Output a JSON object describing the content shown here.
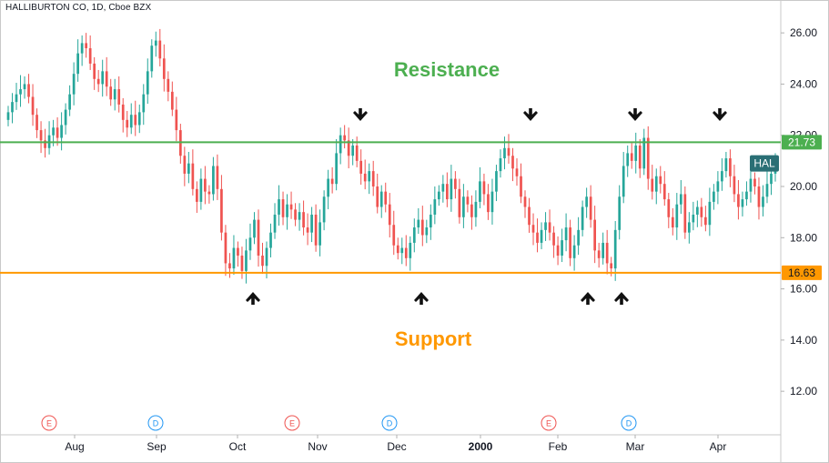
{
  "header": {
    "symbol_title": "HALLIBURTON CO, 1D, Cboe BZX"
  },
  "chart_data": {
    "type": "candlestick",
    "title": "HALLIBURTON CO, 1D, Cboe BZX",
    "ylim": [
      10.3,
      27.0
    ],
    "yticks": [
      12.0,
      14.0,
      16.0,
      18.0,
      20.0,
      22.0,
      24.0,
      26.0
    ],
    "yticks_labels": [
      "12.00",
      "14.00",
      "16.00",
      "18.00",
      "20.00",
      "22.00",
      "24.00",
      "26.00"
    ],
    "x_months": [
      "Aug",
      "Sep",
      "Oct",
      "Nov",
      "Dec",
      "2000",
      "Feb",
      "Mar",
      "Apr"
    ],
    "grid": false,
    "resistance": {
      "label": "Resistance",
      "value": 21.73,
      "value_label": "21.73",
      "color": "#4caf50"
    },
    "support": {
      "label": "Support",
      "value": 16.63,
      "value_label": "16.63",
      "color": "#ff9800"
    },
    "last_price": {
      "symbol": "HAL",
      "value": 20.9,
      "color": "#2a6f75"
    },
    "up_color": "#26a69a",
    "down_color": "#ef5350",
    "markers": {
      "down_arrows": [
        "Nov",
        "Jan",
        "Mar",
        "Apr"
      ],
      "up_arrows": [
        "Oct",
        "Dec",
        "Feb",
        "Feb",
        "Feb"
      ]
    },
    "events": [
      {
        "letter": "E",
        "month": "Aug",
        "color": "#ef5350"
      },
      {
        "letter": "D",
        "month": "Sep",
        "color": "#2196f3"
      },
      {
        "letter": "E",
        "month": "Nov",
        "color": "#ef5350"
      },
      {
        "letter": "D",
        "month": "Dec",
        "color": "#2196f3"
      },
      {
        "letter": "E",
        "month": "Feb",
        "color": "#ef5350"
      },
      {
        "letter": "D",
        "month": "Mar",
        "color": "#2196f3"
      }
    ],
    "closes": [
      22.9,
      23.3,
      23.6,
      23.8,
      24.0,
      23.5,
      22.8,
      22.2,
      21.8,
      21.5,
      22.0,
      22.3,
      21.9,
      22.4,
      23.0,
      23.6,
      24.4,
      25.2,
      25.6,
      25.4,
      24.8,
      24.2,
      24.0,
      24.5,
      23.9,
      23.4,
      23.8,
      23.2,
      22.6,
      22.3,
      22.8,
      22.4,
      22.9,
      23.6,
      24.5,
      25.5,
      25.7,
      25.0,
      24.2,
      23.7,
      23.0,
      22.2,
      21.2,
      20.5,
      20.9,
      19.9,
      19.4,
      20.3,
      19.8,
      19.7,
      20.8,
      19.9,
      18.2,
      17.0,
      16.8,
      17.6,
      17.3,
      16.7,
      17.5,
      18.0,
      18.7,
      17.3,
      16.9,
      17.6,
      18.2,
      18.9,
      19.5,
      18.8,
      19.3,
      19.1,
      18.7,
      19.0,
      18.4,
      18.2,
      18.9,
      17.7,
      18.6,
      19.6,
      20.3,
      20.1,
      21.3,
      22.0,
      21.8,
      21.2,
      21.6,
      21.0,
      20.5,
      20.2,
      20.6,
      20.0,
      19.2,
      19.8,
      19.3,
      18.5,
      17.7,
      17.4,
      17.6,
      17.2,
      17.8,
      18.4,
      18.7,
      18.1,
      18.4,
      18.9,
      19.5,
      19.8,
      20.1,
      19.5,
      20.3,
      19.9,
      18.8,
      19.6,
      19.3,
      18.8,
      19.4,
      20.2,
      19.7,
      19.0,
      19.8,
      20.6,
      21.1,
      21.5,
      21.2,
      20.7,
      20.4,
      19.6,
      19.2,
      18.5,
      18.2,
      17.8,
      18.3,
      18.6,
      18.2,
      17.7,
      17.3,
      17.9,
      18.4,
      17.2,
      17.7,
      18.3,
      19.2,
      19.6,
      18.7,
      17.5,
      17.2,
      17.8,
      17.0,
      16.8,
      18.3,
      19.6,
      20.8,
      21.3,
      21.0,
      21.6,
      20.7,
      21.9,
      20.3,
      19.8,
      20.4,
      20.1,
      19.5,
      18.8,
      18.4,
      19.3,
      19.7,
      18.2,
      18.6,
      18.9,
      19.2,
      18.8,
      18.5,
      19.4,
      19.8,
      20.2,
      20.6,
      21.1,
      20.4,
      19.7,
      19.2,
      19.5,
      19.8,
      20.3,
      20.0,
      19.2,
      19.6,
      20.1,
      20.5,
      20.9
    ]
  }
}
